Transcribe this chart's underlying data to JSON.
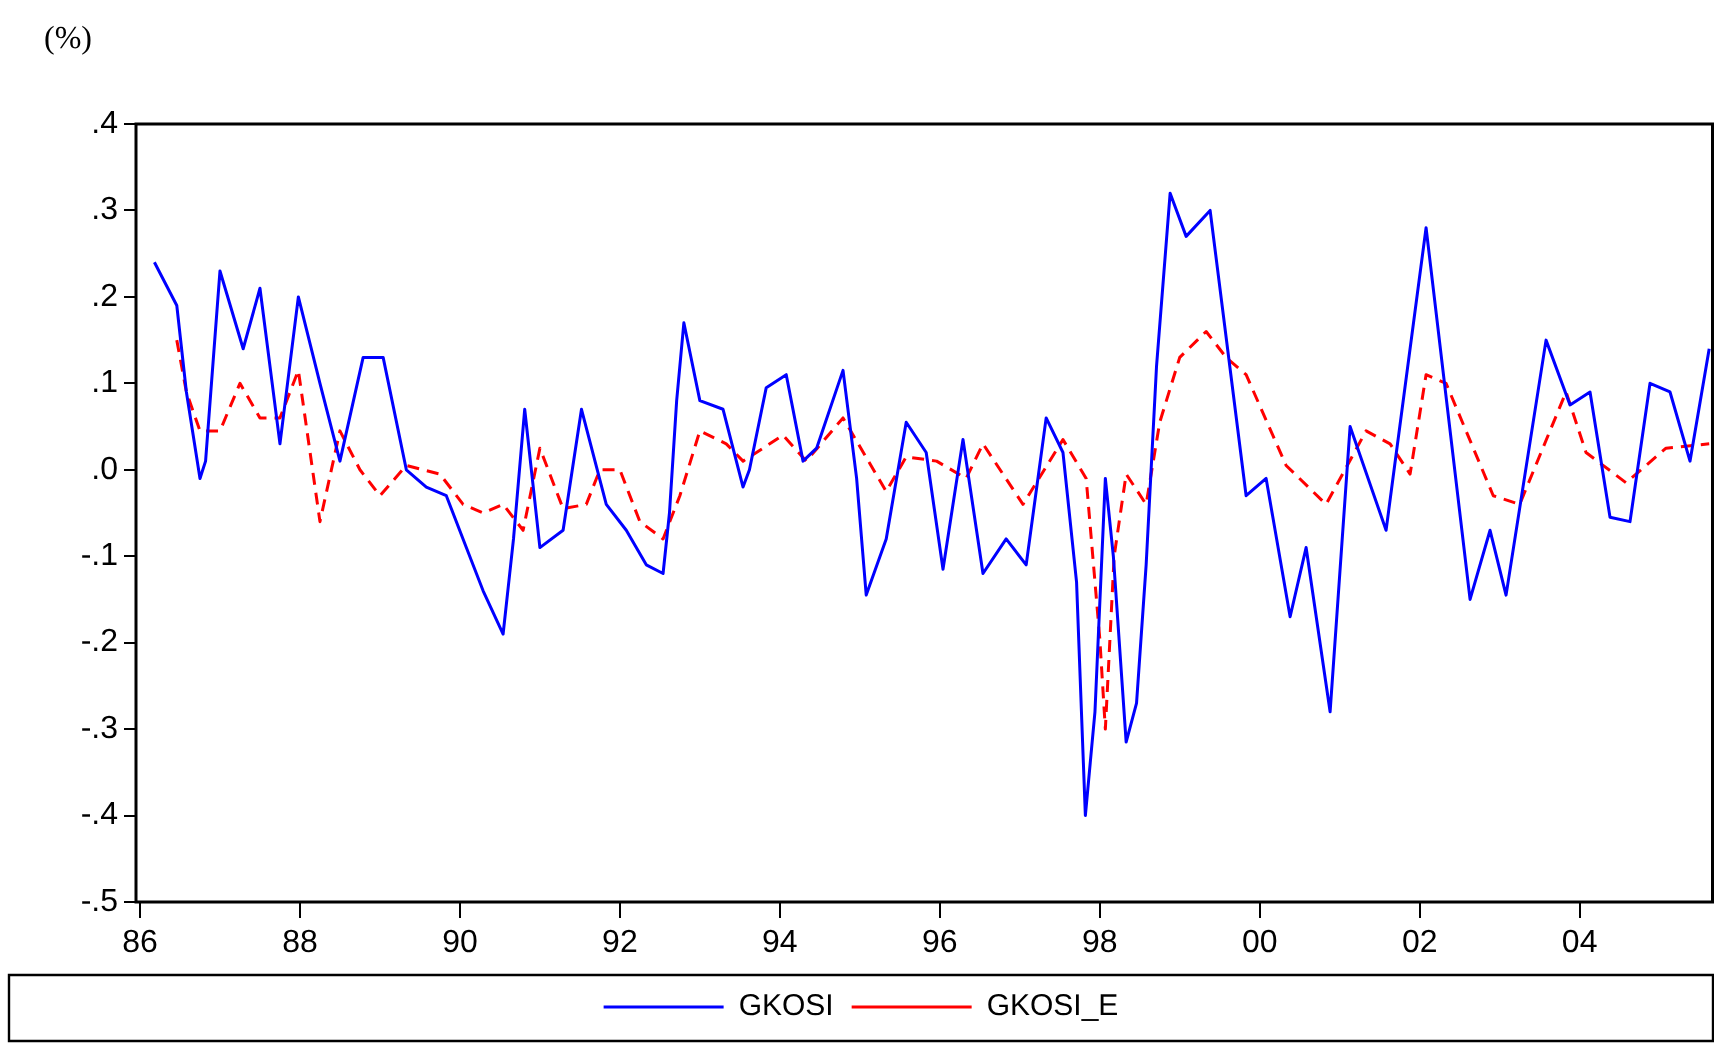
{
  "chart_data": {
    "type": "line",
    "ylabel": "(%)",
    "xlim": [
      1985.95,
      2005.68
    ],
    "ylim": [
      -0.5,
      0.4
    ],
    "xticks": [
      {
        "value": 1986,
        "label": "86"
      },
      {
        "value": 1988,
        "label": "88"
      },
      {
        "value": 1990,
        "label": "90"
      },
      {
        "value": 1992,
        "label": "92"
      },
      {
        "value": 1994,
        "label": "94"
      },
      {
        "value": 1996,
        "label": "96"
      },
      {
        "value": 1998,
        "label": "98"
      },
      {
        "value": 2000,
        "label": "00"
      },
      {
        "value": 2002,
        "label": "02"
      },
      {
        "value": 2004,
        "label": "04"
      }
    ],
    "yticks": [
      {
        "value": -0.5,
        "label": "-.5"
      },
      {
        "value": -0.4,
        "label": "-.4"
      },
      {
        "value": -0.3,
        "label": "-.3"
      },
      {
        "value": -0.2,
        "label": "-.2"
      },
      {
        "value": -0.1,
        "label": "-.1"
      },
      {
        "value": 0,
        "label": ".0"
      },
      {
        "value": 0.1,
        "label": ".1"
      },
      {
        "value": 0.2,
        "label": ".2"
      },
      {
        "value": 0.3,
        "label": ".3"
      },
      {
        "value": 0.4,
        "label": ".4"
      }
    ],
    "grid": false,
    "legend": "bottom",
    "marker": "none",
    "series": [
      {
        "name": "GKOSI",
        "color": "#0000ff",
        "line_style": "solid",
        "x": [
          1986.18,
          1986.46,
          1986.58,
          1986.75,
          1986.82,
          1987.0,
          1987.29,
          1987.5,
          1987.75,
          1987.98,
          1988.25,
          1988.5,
          1988.79,
          1989.04,
          1989.33,
          1989.58,
          1989.83,
          1990.08,
          1990.29,
          1990.54,
          1990.67,
          1990.81,
          1991.0,
          1991.29,
          1991.52,
          1991.83,
          1992.08,
          1992.33,
          1992.54,
          1992.62,
          1992.71,
          1992.8,
          1993.0,
          1993.29,
          1993.54,
          1993.62,
          1993.83,
          1994.08,
          1994.29,
          1994.46,
          1994.79,
          1994.96,
          1995.08,
          1995.33,
          1995.58,
          1995.83,
          1996.04,
          1996.29,
          1996.54,
          1996.83,
          1997.08,
          1997.33,
          1997.54,
          1997.71,
          1997.82,
          1997.94,
          1998.07,
          1998.17,
          1998.33,
          1998.46,
          1998.58,
          1998.71,
          1998.88,
          1999.08,
          1999.38,
          1999.83,
          2000.08,
          2000.38,
          2000.58,
          2000.88,
          2001.13,
          2001.58,
          2002.08,
          2002.63,
          2002.88,
          2003.08,
          2003.58,
          2003.88,
          2004.13,
          2004.38,
          2004.63,
          2004.88,
          2005.13,
          2005.38,
          2005.62
        ],
        "values": [
          0.24,
          0.19,
          0.09,
          -0.01,
          0.01,
          0.23,
          0.14,
          0.21,
          0.03,
          0.2,
          0.1,
          0.01,
          0.13,
          0.13,
          0.0,
          -0.02,
          -0.03,
          -0.09,
          -0.14,
          -0.19,
          -0.08,
          0.07,
          -0.09,
          -0.07,
          0.07,
          -0.04,
          -0.07,
          -0.11,
          -0.12,
          -0.05,
          0.08,
          0.17,
          0.08,
          0.07,
          -0.02,
          0.0,
          0.095,
          0.11,
          0.01,
          0.025,
          0.115,
          -0.01,
          -0.145,
          -0.08,
          0.055,
          0.02,
          -0.115,
          0.035,
          -0.12,
          -0.08,
          -0.11,
          0.06,
          0.02,
          -0.13,
          -0.4,
          -0.28,
          -0.01,
          -0.1,
          -0.315,
          -0.27,
          -0.11,
          0.12,
          0.32,
          0.27,
          0.3,
          -0.03,
          -0.01,
          -0.17,
          -0.09,
          -0.28,
          0.05,
          -0.07,
          0.28,
          -0.15,
          -0.07,
          -0.145,
          0.15,
          0.075,
          0.09,
          -0.055,
          -0.06,
          0.1,
          0.09,
          0.01,
          0.14
        ]
      },
      {
        "name": "GKOSI_E",
        "color": "#ff0000",
        "line_style": "dashed",
        "x": [
          1986.46,
          1986.58,
          1986.75,
          1987.0,
          1987.25,
          1987.5,
          1987.75,
          1987.98,
          1988.25,
          1988.5,
          1988.75,
          1989.0,
          1989.33,
          1989.75,
          1990.04,
          1990.29,
          1990.54,
          1990.79,
          1991.0,
          1991.29,
          1991.58,
          1991.75,
          1992.0,
          1992.25,
          1992.54,
          1992.75,
          1993.0,
          1993.33,
          1993.54,
          1994.04,
          1994.33,
          1994.79,
          1995.33,
          1995.58,
          1995.96,
          1996.33,
          1996.54,
          1997.04,
          1997.54,
          1997.83,
          1998.0,
          1998.07,
          1998.18,
          1998.33,
          1998.58,
          1998.75,
          1999.0,
          1999.33,
          1999.58,
          1999.83,
          2000.33,
          2000.83,
          2001.33,
          2001.63,
          2001.88,
          2002.08,
          2002.33,
          2002.92,
          2003.25,
          2003.83,
          2004.08,
          2004.58,
          2005.08,
          2005.62
        ],
        "values": [
          0.15,
          0.09,
          0.045,
          0.045,
          0.1,
          0.06,
          0.06,
          0.115,
          -0.06,
          0.045,
          0.0,
          -0.03,
          0.005,
          -0.005,
          -0.04,
          -0.05,
          -0.04,
          -0.07,
          0.025,
          -0.045,
          -0.04,
          0.0,
          0.0,
          -0.06,
          -0.08,
          -0.03,
          0.045,
          0.03,
          0.01,
          0.04,
          0.01,
          0.06,
          -0.025,
          0.015,
          0.01,
          -0.01,
          0.03,
          -0.04,
          0.035,
          -0.01,
          -0.195,
          -0.3,
          -0.1,
          -0.005,
          -0.04,
          0.055,
          0.13,
          0.16,
          0.13,
          0.11,
          0.005,
          -0.04,
          0.045,
          0.03,
          -0.005,
          0.11,
          0.1,
          -0.03,
          -0.04,
          0.09,
          0.02,
          -0.015,
          0.025,
          0.03
        ]
      }
    ]
  }
}
